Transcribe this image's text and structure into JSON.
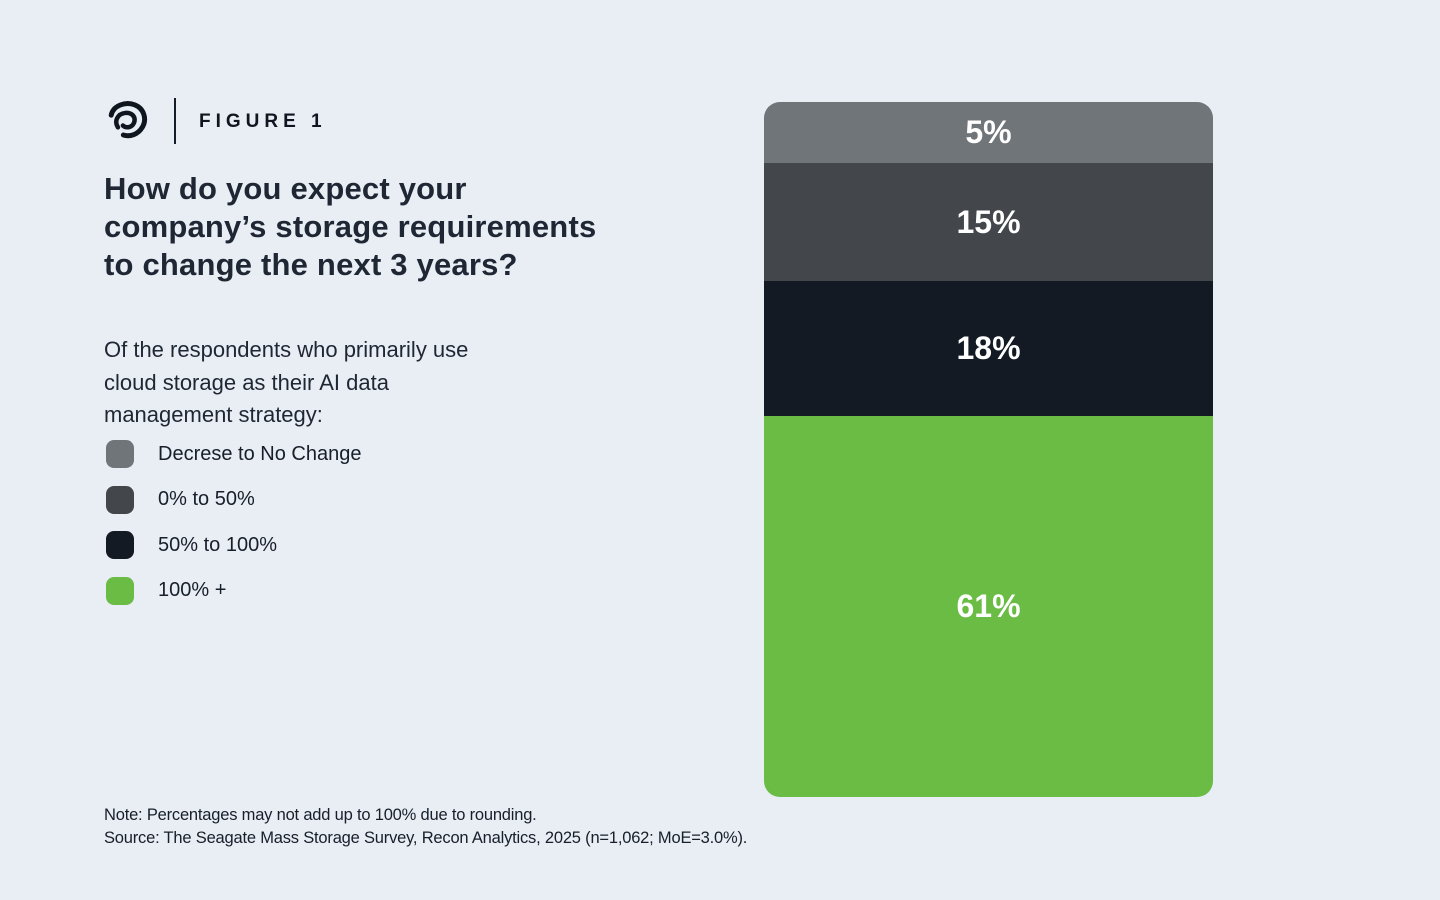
{
  "brand": {
    "logo_name": "seagate-swirl-logo",
    "figure_label": "FIGURE 1"
  },
  "figure": {
    "title": "How do you expect your\ncompany’s storage requirements\nto change the next 3 years?",
    "subtitle": "Of the respondents who primarily use\ncloud storage as their AI data\nmanagement strategy:",
    "note": "Note: Percentages may not add up to 100% due to rounding.",
    "source": "Source: The Seagate Mass Storage Survey, Recon Analytics, 2025 (n=1,062; MoE=3.0%)."
  },
  "colors": {
    "background": "#e9edf4",
    "text_dark": "#1e2733",
    "bar_gray": "#70757a",
    "bar_dark_gray": "#43474c",
    "bar_black": "#131a24",
    "bar_green": "#6abc45",
    "value_label": "#ffffff"
  },
  "chart_data": {
    "type": "bar",
    "stacked": true,
    "orientation": "vertical",
    "title": "How do you expect your company’s storage requirements to change the next 3 years?",
    "categories": [
      "Decrese to No Change",
      "0% to 50%",
      "50% to 100%",
      "100% +"
    ],
    "values": [
      5,
      15,
      18,
      61
    ],
    "value_labels": [
      "5%",
      "15%",
      "18%",
      "61%"
    ],
    "series_colors": [
      "#70757a",
      "#43474c",
      "#131a24",
      "#6abc45"
    ],
    "legend_position": "left",
    "axes": "none",
    "grid": false,
    "value_label_color": "#ffffff"
  }
}
